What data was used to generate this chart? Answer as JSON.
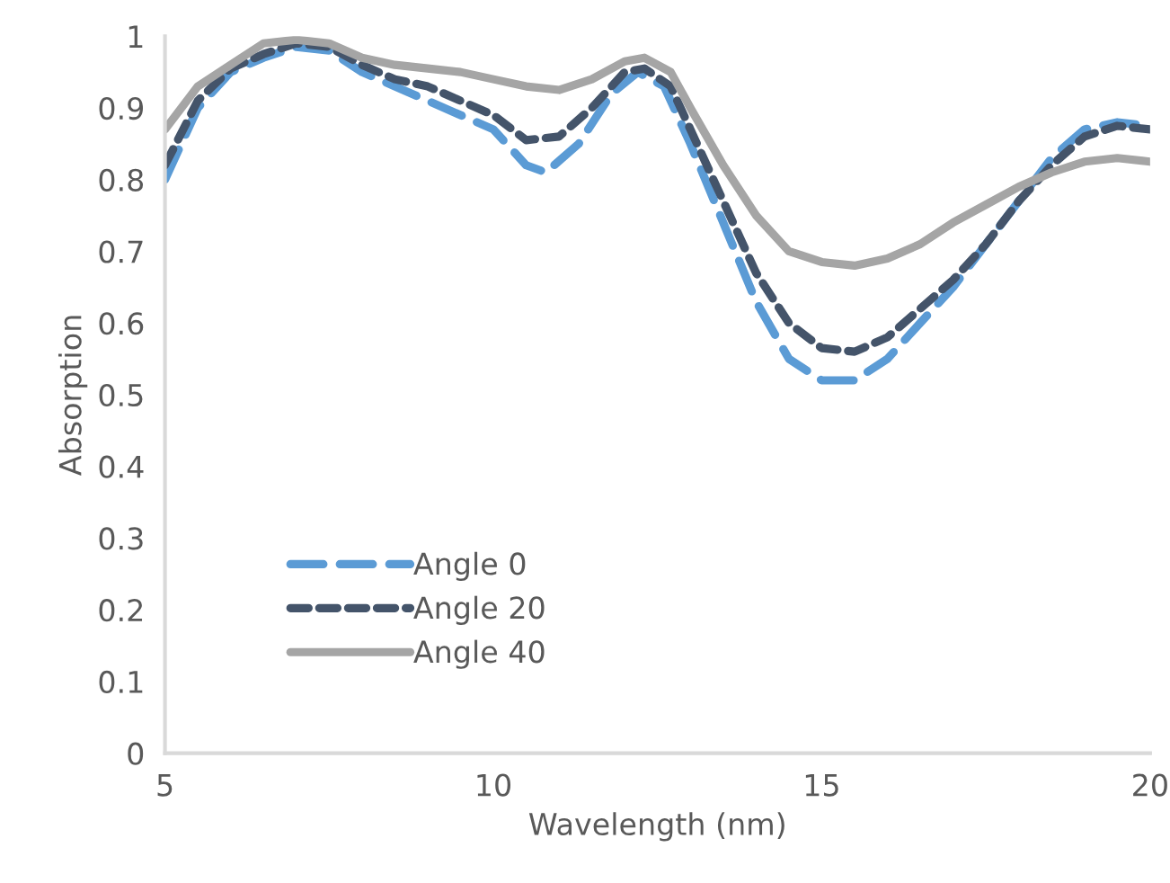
{
  "chart_data": {
    "type": "line",
    "xlabel": "Wavelength (nm)",
    "ylabel": "Absorption",
    "xlim": [
      5,
      20
    ],
    "xticks": [
      5,
      10,
      15,
      20
    ],
    "ylim": [
      0,
      1
    ],
    "yticks": [
      0,
      0.1,
      0.2,
      0.3,
      0.4,
      0.5,
      0.6,
      0.7,
      0.8,
      0.9,
      1
    ],
    "grid": false,
    "legend": "bottom left",
    "marker": "none",
    "series": [
      {
        "name": "Angle 0",
        "color": "#5b9bd5",
        "line_style": "dashed",
        "x": [
          5,
          5.5,
          6,
          6.5,
          7,
          7.5,
          8,
          8.5,
          9,
          9.5,
          10,
          10.5,
          10.8,
          11.3,
          11.8,
          12.2,
          12.6,
          13,
          13.5,
          14,
          14.5,
          15,
          15.5,
          16,
          16.5,
          17,
          17.5,
          18,
          18.5,
          19,
          19.5,
          20
        ],
        "values": [
          0.8,
          0.9,
          0.95,
          0.97,
          0.985,
          0.98,
          0.95,
          0.93,
          0.91,
          0.89,
          0.87,
          0.82,
          0.81,
          0.85,
          0.92,
          0.95,
          0.93,
          0.85,
          0.74,
          0.63,
          0.55,
          0.52,
          0.52,
          0.55,
          0.6,
          0.65,
          0.71,
          0.77,
          0.83,
          0.87,
          0.88,
          0.875
        ]
      },
      {
        "name": "Angle 20",
        "color": "#44546a",
        "line_style": "dashed",
        "x": [
          5,
          5.5,
          6,
          6.5,
          7,
          7.5,
          8,
          8.5,
          9,
          9.5,
          10,
          10.5,
          11,
          11.5,
          12,
          12.3,
          12.7,
          13,
          13.5,
          14,
          14.5,
          15,
          15.5,
          16,
          16.5,
          17,
          17.5,
          18,
          18.5,
          19,
          19.5,
          20
        ],
        "values": [
          0.82,
          0.91,
          0.955,
          0.975,
          0.99,
          0.985,
          0.96,
          0.94,
          0.93,
          0.91,
          0.89,
          0.855,
          0.86,
          0.9,
          0.95,
          0.955,
          0.93,
          0.87,
          0.77,
          0.67,
          0.6,
          0.565,
          0.56,
          0.58,
          0.62,
          0.66,
          0.71,
          0.77,
          0.82,
          0.86,
          0.875,
          0.87
        ]
      },
      {
        "name": "Angle 40",
        "color": "#a5a5a5",
        "line_style": "solid",
        "x": [
          5,
          5.5,
          6,
          6.5,
          7,
          7.5,
          8,
          8.5,
          9,
          9.5,
          10,
          10.5,
          11,
          11.5,
          12,
          12.3,
          12.7,
          13,
          13.5,
          14,
          14.5,
          15,
          15.5,
          16,
          16.5,
          17,
          17.5,
          18,
          18.5,
          19,
          19.5,
          20
        ],
        "values": [
          0.87,
          0.93,
          0.96,
          0.99,
          0.995,
          0.99,
          0.97,
          0.96,
          0.955,
          0.95,
          0.94,
          0.93,
          0.925,
          0.94,
          0.965,
          0.97,
          0.95,
          0.9,
          0.82,
          0.75,
          0.7,
          0.685,
          0.68,
          0.69,
          0.71,
          0.74,
          0.765,
          0.79,
          0.81,
          0.825,
          0.83,
          0.825
        ]
      }
    ]
  }
}
